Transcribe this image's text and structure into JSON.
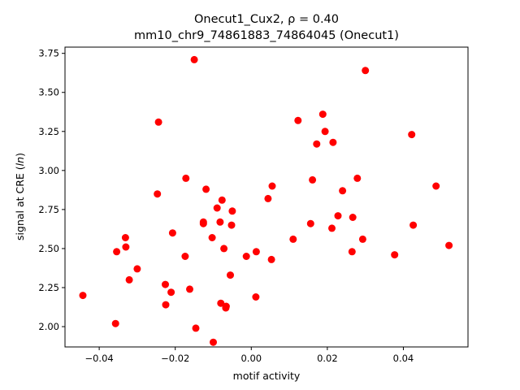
{
  "chart_data": {
    "type": "scatter",
    "title_line1": "Onecut1_Cux2, ρ = 0.40",
    "title_line2": "mm10_chr9_74861883_74864045 (Onecut1)",
    "xlabel": "motif activity",
    "ylabel": "signal at CRE (ln)",
    "xlim": [
      -0.049,
      0.057
    ],
    "ylim": [
      1.87,
      3.79
    ],
    "xticks": [
      -0.04,
      -0.02,
      0.0,
      0.02,
      0.04
    ],
    "xtick_labels": [
      "−0.04",
      "−0.02",
      "0.00",
      "0.02",
      "0.04"
    ],
    "yticks": [
      2.0,
      2.25,
      2.5,
      2.75,
      3.0,
      3.25,
      3.5,
      3.75
    ],
    "ytick_labels": [
      "2.00",
      "2.25",
      "2.50",
      "2.75",
      "3.00",
      "3.25",
      "3.50",
      "3.75"
    ],
    "grid": false,
    "marker_color": "#ff0000",
    "points": [
      {
        "x": -0.0443,
        "y": 2.2
      },
      {
        "x": -0.0357,
        "y": 2.02
      },
      {
        "x": -0.0354,
        "y": 2.48
      },
      {
        "x": -0.0331,
        "y": 2.57
      },
      {
        "x": -0.033,
        "y": 2.51
      },
      {
        "x": -0.0321,
        "y": 2.3
      },
      {
        "x": -0.03,
        "y": 2.37
      },
      {
        "x": -0.0247,
        "y": 2.85
      },
      {
        "x": -0.0244,
        "y": 3.31
      },
      {
        "x": -0.0226,
        "y": 2.27
      },
      {
        "x": -0.0225,
        "y": 2.14
      },
      {
        "x": -0.0211,
        "y": 2.22
      },
      {
        "x": -0.0207,
        "y": 2.6
      },
      {
        "x": -0.0174,
        "y": 2.45
      },
      {
        "x": -0.0172,
        "y": 2.95
      },
      {
        "x": -0.0162,
        "y": 2.24
      },
      {
        "x": -0.015,
        "y": 3.71
      },
      {
        "x": -0.0146,
        "y": 1.99
      },
      {
        "x": -0.0126,
        "y": 2.66
      },
      {
        "x": -0.0126,
        "y": 2.67
      },
      {
        "x": -0.0119,
        "y": 2.88
      },
      {
        "x": -0.0103,
        "y": 2.57
      },
      {
        "x": -0.01,
        "y": 1.9
      },
      {
        "x": -0.009,
        "y": 2.76
      },
      {
        "x": -0.0082,
        "y": 2.67
      },
      {
        "x": -0.008,
        "y": 2.15
      },
      {
        "x": -0.0077,
        "y": 2.81
      },
      {
        "x": -0.0072,
        "y": 2.5
      },
      {
        "x": -0.0067,
        "y": 2.12
      },
      {
        "x": -0.0066,
        "y": 2.13
      },
      {
        "x": -0.0055,
        "y": 2.33
      },
      {
        "x": -0.0052,
        "y": 2.65
      },
      {
        "x": -0.005,
        "y": 2.74
      },
      {
        "x": -0.0013,
        "y": 2.45
      },
      {
        "x": 0.0012,
        "y": 2.19
      },
      {
        "x": 0.0013,
        "y": 2.48
      },
      {
        "x": 0.0044,
        "y": 2.82
      },
      {
        "x": 0.0053,
        "y": 2.43
      },
      {
        "x": 0.0055,
        "y": 2.9
      },
      {
        "x": 0.011,
        "y": 2.56
      },
      {
        "x": 0.0123,
        "y": 3.32
      },
      {
        "x": 0.0156,
        "y": 2.66
      },
      {
        "x": 0.0161,
        "y": 2.94
      },
      {
        "x": 0.0172,
        "y": 3.17
      },
      {
        "x": 0.0188,
        "y": 3.36
      },
      {
        "x": 0.0194,
        "y": 3.25
      },
      {
        "x": 0.0212,
        "y": 2.63
      },
      {
        "x": 0.0215,
        "y": 3.18
      },
      {
        "x": 0.0228,
        "y": 2.71
      },
      {
        "x": 0.024,
        "y": 2.87
      },
      {
        "x": 0.0265,
        "y": 2.48
      },
      {
        "x": 0.0267,
        "y": 2.7
      },
      {
        "x": 0.0279,
        "y": 2.95
      },
      {
        "x": 0.0293,
        "y": 2.56
      },
      {
        "x": 0.03,
        "y": 3.64
      },
      {
        "x": 0.0377,
        "y": 2.46
      },
      {
        "x": 0.0422,
        "y": 3.23
      },
      {
        "x": 0.0426,
        "y": 2.65
      },
      {
        "x": 0.0486,
        "y": 2.9
      },
      {
        "x": 0.052,
        "y": 2.52
      }
    ]
  }
}
